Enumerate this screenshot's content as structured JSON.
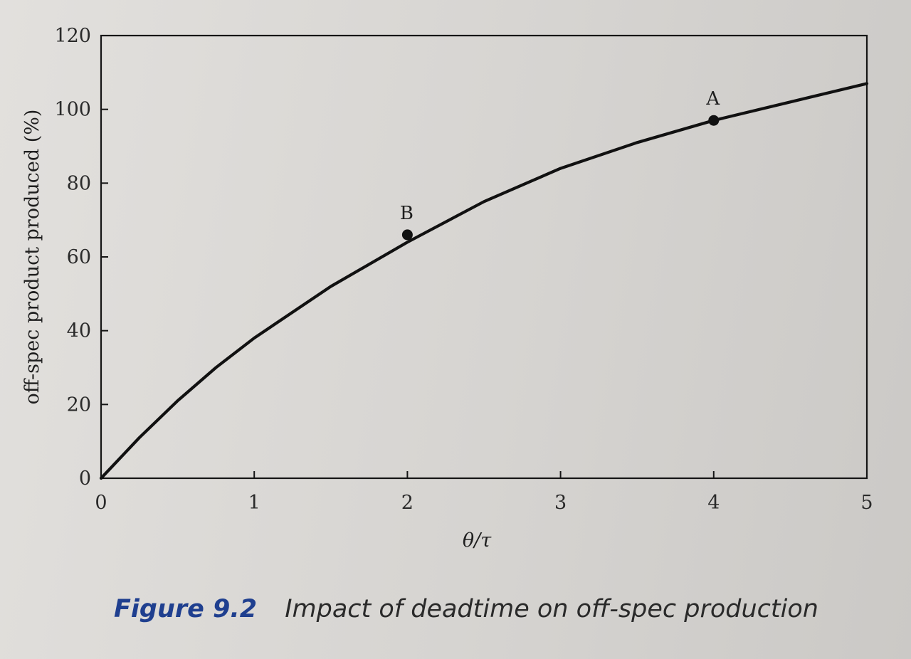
{
  "chart_data": {
    "type": "line",
    "title": "",
    "xlabel": "θ/τ",
    "ylabel": "off-spec product produced (%)",
    "xlim": [
      0,
      5
    ],
    "ylim": [
      0,
      120
    ],
    "x_ticks": [
      "0",
      "1",
      "2",
      "3",
      "4",
      "5"
    ],
    "y_ticks": [
      "0",
      "20",
      "40",
      "60",
      "80",
      "100",
      "120"
    ],
    "grid": false,
    "series": [
      {
        "x": [
          0,
          0.25,
          0.5,
          0.75,
          1,
          1.5,
          2,
          2.5,
          3,
          3.5,
          4,
          4.5,
          5
        ],
        "y": [
          0,
          11,
          21,
          30,
          38,
          52,
          64,
          75,
          84,
          91,
          97,
          102,
          107
        ]
      }
    ],
    "annotations": [
      {
        "label": "A",
        "x": 4,
        "y": 97
      },
      {
        "label": "B",
        "x": 2,
        "y": 66
      }
    ]
  },
  "caption": {
    "number": "Figure 9.2",
    "text": "Impact of deadtime on off-spec production"
  }
}
